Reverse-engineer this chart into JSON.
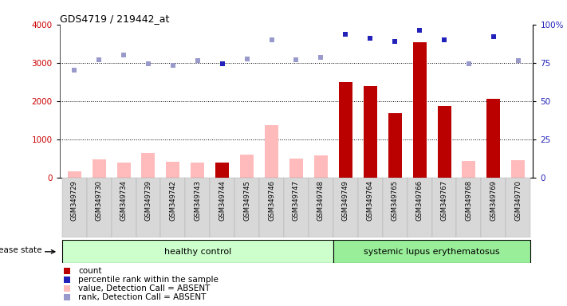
{
  "title": "GDS4719 / 219442_at",
  "samples": [
    "GSM349729",
    "GSM349730",
    "GSM349734",
    "GSM349739",
    "GSM349742",
    "GSM349743",
    "GSM349744",
    "GSM349745",
    "GSM349746",
    "GSM349747",
    "GSM349748",
    "GSM349749",
    "GSM349764",
    "GSM349765",
    "GSM349766",
    "GSM349767",
    "GSM349768",
    "GSM349769",
    "GSM349770"
  ],
  "count_values": [
    null,
    null,
    null,
    null,
    null,
    null,
    400,
    null,
    null,
    null,
    null,
    2500,
    2380,
    1680,
    3540,
    1860,
    null,
    2050,
    null
  ],
  "count_absent": [
    170,
    480,
    390,
    640,
    420,
    390,
    null,
    600,
    1370,
    500,
    580,
    null,
    null,
    null,
    null,
    null,
    430,
    null,
    460
  ],
  "rank_values": [
    null,
    null,
    null,
    null,
    null,
    null,
    2970,
    null,
    null,
    null,
    null,
    3750,
    3650,
    3560,
    3840,
    3600,
    null,
    3680,
    null
  ],
  "rank_absent": [
    2810,
    3080,
    3200,
    2980,
    2940,
    3050,
    null,
    3100,
    3590,
    3080,
    3130,
    null,
    null,
    null,
    null,
    null,
    2980,
    null,
    3060
  ],
  "healthy_count": 11,
  "ylim_left": [
    0,
    4000
  ],
  "ylim_right": [
    0,
    100
  ],
  "yticks_left": [
    0,
    1000,
    2000,
    3000,
    4000
  ],
  "yticks_right": [
    0,
    25,
    50,
    75,
    100
  ],
  "bar_red_color": "#bb0000",
  "bar_pink_color": "#ffbbbb",
  "dot_blue_color": "#2222bb",
  "dot_lightblue_color": "#9999cc",
  "healthy_bg": "#ccffcc",
  "lupus_bg": "#99ee99",
  "disease_state_label": "disease state",
  "healthy_label": "healthy control",
  "lupus_label": "systemic lupus erythematosus",
  "legend_items": [
    {
      "color": "#bb0000",
      "label": "count"
    },
    {
      "color": "#2222bb",
      "label": "percentile rank within the sample"
    },
    {
      "color": "#ffbbbb",
      "label": "value, Detection Call = ABSENT"
    },
    {
      "color": "#9999cc",
      "label": "rank, Detection Call = ABSENT"
    }
  ]
}
